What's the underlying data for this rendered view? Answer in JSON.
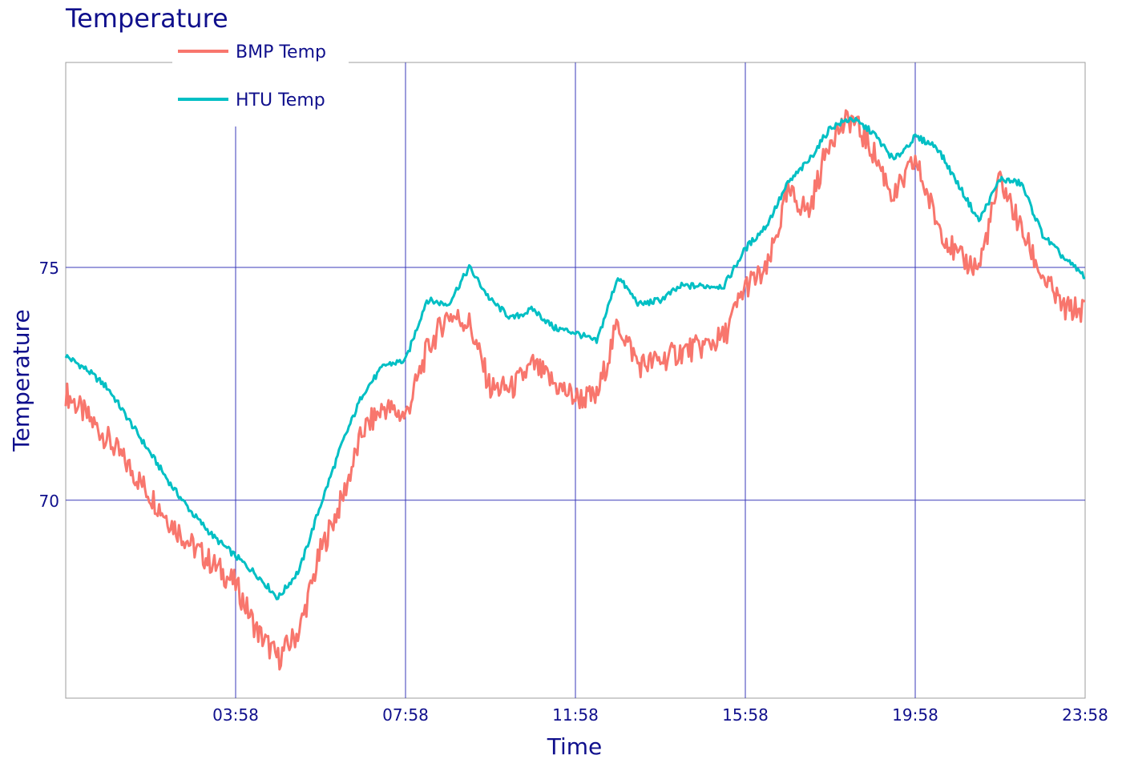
{
  "chart_data": {
    "type": "line",
    "title": "Temperature",
    "xlabel": "Time",
    "ylabel": "Temperature",
    "x_ticks": [
      "03:58",
      "07:58",
      "11:58",
      "15:58",
      "19:58",
      "23:58"
    ],
    "y_ticks": [
      70,
      75
    ],
    "xlim": [
      "23:58",
      "23:58"
    ],
    "ylim": [
      65.75,
      79.4
    ],
    "grid": true,
    "legend_position": "top-left",
    "x_hours_from_start": [
      0,
      0.5,
      1,
      1.5,
      2,
      2.5,
      3,
      3.5,
      4,
      4.5,
      5,
      5.5,
      6,
      6.5,
      7,
      7.5,
      8,
      8.5,
      9,
      9.5,
      10,
      10.5,
      11,
      11.5,
      12,
      12.5,
      13,
      13.5,
      14,
      14.5,
      15,
      15.5,
      16,
      16.5,
      17,
      17.5,
      18,
      18.5,
      19,
      19.5,
      20,
      20.5,
      21,
      21.5,
      22,
      22.5,
      23,
      23.5,
      24
    ],
    "series": [
      {
        "name": "BMP Temp",
        "color": "#f8766d",
        "values": [
          72.3,
          71.8,
          71.3,
          70.7,
          70.1,
          69.5,
          69.0,
          68.6,
          68.2,
          67.2,
          66.6,
          67.2,
          68.9,
          70.0,
          71.5,
          72.0,
          71.8,
          73.2,
          74.0,
          73.8,
          72.4,
          72.4,
          72.9,
          72.5,
          72.2,
          72.2,
          73.8,
          72.9,
          73.0,
          73.2,
          73.3,
          73.5,
          74.6,
          74.9,
          76.6,
          76.2,
          77.8,
          78.2,
          77.5,
          76.5,
          77.3,
          76.0,
          75.2,
          75.0,
          76.9,
          75.8,
          74.8,
          74.1,
          74.1
        ]
      },
      {
        "name": "HTU Temp",
        "color": "#00bfc4",
        "values": [
          73.1,
          72.8,
          72.4,
          71.7,
          71.0,
          70.3,
          69.7,
          69.2,
          68.8,
          68.4,
          67.9,
          68.5,
          69.9,
          71.2,
          72.3,
          72.9,
          73.0,
          74.3,
          74.2,
          75.0,
          74.3,
          73.9,
          74.1,
          73.7,
          73.6,
          73.4,
          74.8,
          74.2,
          74.3,
          74.6,
          74.6,
          74.6,
          75.4,
          75.9,
          76.8,
          77.3,
          78.0,
          78.2,
          77.9,
          77.3,
          77.8,
          77.6,
          76.8,
          76.0,
          76.9,
          76.8,
          75.7,
          75.2,
          74.8
        ]
      }
    ]
  }
}
